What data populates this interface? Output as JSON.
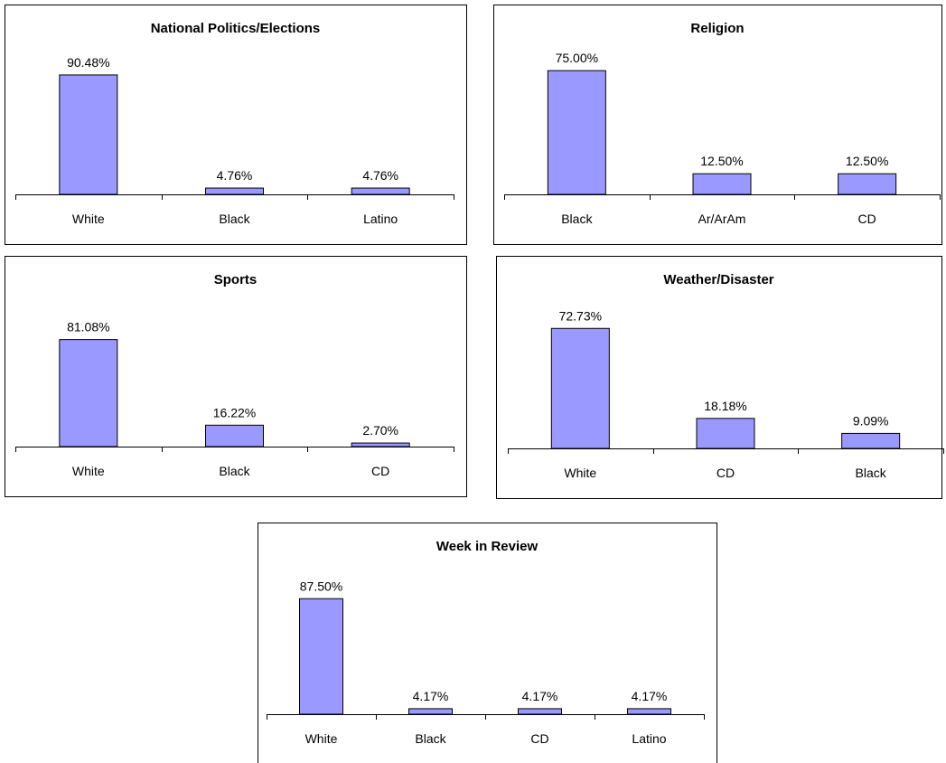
{
  "chart_data": [
    {
      "type": "bar",
      "title": "National Politics/Elections",
      "categories": [
        "White",
        "Black",
        "Latino"
      ],
      "values": [
        90.48,
        4.76,
        4.76
      ],
      "value_labels": [
        "90.48%",
        "4.76%",
        "4.76%"
      ],
      "color": "#9999ff",
      "ylim": [
        0,
        100
      ]
    },
    {
      "type": "bar",
      "title": "Religion",
      "categories": [
        "Black",
        "Ar/ArAm",
        "CD"
      ],
      "values": [
        75.0,
        12.5,
        12.5
      ],
      "value_labels": [
        "75.00%",
        "12.50%",
        "12.50%"
      ],
      "color": "#9999ff",
      "ylim": [
        0,
        80
      ]
    },
    {
      "type": "bar",
      "title": "Sports",
      "categories": [
        "White",
        "Black",
        "CD"
      ],
      "values": [
        81.08,
        16.22,
        2.7
      ],
      "value_labels": [
        "81.08%",
        "16.22%",
        "2.70%"
      ],
      "color": "#9999ff",
      "ylim": [
        0,
        100
      ]
    },
    {
      "type": "bar",
      "title": "Weather/Disaster",
      "categories": [
        "White",
        "CD",
        "Black"
      ],
      "values": [
        72.73,
        18.18,
        9.09
      ],
      "value_labels": [
        "72.73%",
        "18.18%",
        "9.09%"
      ],
      "color": "#9999ff",
      "ylim": [
        0,
        80
      ]
    },
    {
      "type": "bar",
      "title": "Week in Review",
      "categories": [
        "White",
        "Black",
        "CD",
        "Latino"
      ],
      "values": [
        87.5,
        4.17,
        4.17,
        4.17
      ],
      "value_labels": [
        "87.50%",
        "4.17%",
        "4.17%",
        "4.17%"
      ],
      "color": "#9999ff",
      "ylim": [
        0,
        100
      ]
    }
  ]
}
